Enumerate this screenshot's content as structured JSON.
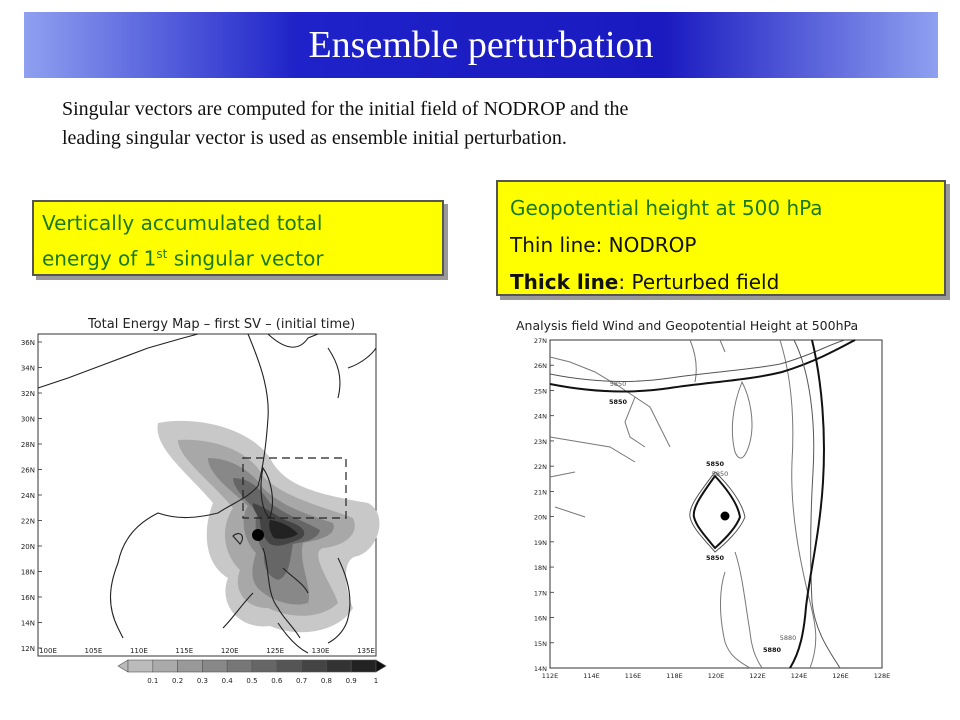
{
  "title": "Ensemble perturbation",
  "intro_line1": "Singular vectors are computed for the initial field of NODROP and the",
  "intro_line2": "leading singular vector is used as ensemble initial perturbation.",
  "left_callout": {
    "line1": "Vertically accumulated total",
    "line2_pre": "energy of 1",
    "line2_sup": "st",
    "line2_post": " singular vector"
  },
  "right_callout": {
    "line1": "Geopotential height at 500 hPa",
    "line2": "Thin line: NODROP",
    "line3_bold": "Thick line",
    "line3_rest": ": Perturbed field"
  },
  "left_map": {
    "title": "Total Energy Map  –  first SV  –  (initial time)",
    "y_ticks": [
      "36N",
      "34N",
      "32N",
      "30N",
      "28N",
      "26N",
      "24N",
      "22N",
      "20N",
      "18N",
      "16N",
      "14N",
      "12N"
    ],
    "x_ticks": [
      "100E",
      "105E",
      "110E",
      "115E",
      "120E",
      "125E",
      "130E",
      "135E"
    ],
    "colorbar_labels": [
      "0.1",
      "0.2",
      "0.3",
      "0.4",
      "0.5",
      "0.6",
      "0.7",
      "0.8",
      "0.9",
      "1"
    ]
  },
  "right_map": {
    "title": "Analysis field Wind and Geopotential Height at 500hPa",
    "y_ticks": [
      "27N",
      "26N",
      "25N",
      "24N",
      "23N",
      "22N",
      "21N",
      "20N",
      "19N",
      "18N",
      "17N",
      "16N",
      "15N",
      "14N"
    ],
    "x_ticks": [
      "112E",
      "114E",
      "116E",
      "118E",
      "120E",
      "122E",
      "124E",
      "126E",
      "128E"
    ],
    "contour_labels": [
      "5850",
      "5850",
      "5850",
      "5850",
      "5850",
      "5880",
      "5880"
    ]
  }
}
